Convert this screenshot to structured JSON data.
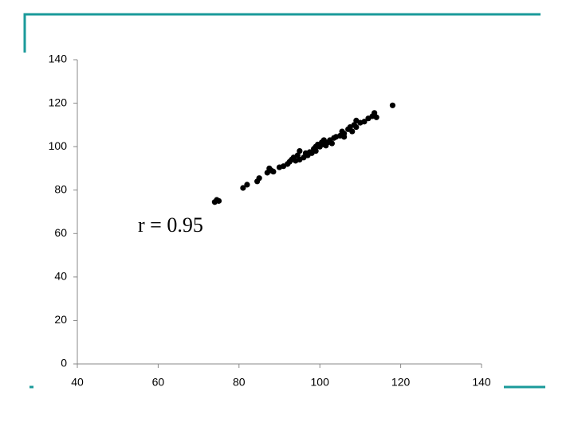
{
  "chart_data": {
    "type": "scatter",
    "annotation": "r = 0.95",
    "color": "#000000",
    "x": [
      74,
      75,
      74.5,
      81,
      82,
      84.5,
      85,
      87,
      87.5,
      88,
      88.5,
      90,
      91,
      92,
      92.5,
      93,
      93.5,
      94,
      94.5,
      95,
      95,
      96,
      96.5,
      97,
      97.5,
      98,
      98.5,
      99,
      99,
      99.5,
      100,
      100.5,
      101,
      101,
      101.5,
      102,
      102.5,
      103,
      103.5,
      104,
      105,
      105.5,
      106,
      106,
      107,
      107.5,
      108,
      108.5,
      109,
      109,
      110,
      111,
      112,
      113,
      113.5,
      114,
      118
    ],
    "values": [
      74.5,
      75,
      75.5,
      81,
      82.5,
      84,
      85.5,
      88,
      90,
      89,
      88.5,
      90.5,
      91,
      92,
      93,
      94,
      95,
      93.5,
      96,
      98,
      94,
      95,
      97,
      96,
      97.5,
      97,
      99,
      100,
      98,
      101,
      100,
      102,
      101,
      103,
      100.5,
      102,
      103,
      101.5,
      104,
      104.5,
      105,
      107,
      106,
      104.5,
      108,
      109,
      107,
      110,
      109,
      112,
      111,
      111.5,
      113,
      114,
      115.5,
      113.5,
      119
    ],
    "xlim": [
      40,
      140
    ],
    "xticks": [
      40,
      60,
      80,
      100,
      120,
      140
    ],
    "ylim": [
      0,
      140
    ],
    "yticks": [
      0,
      20,
      40,
      60,
      80,
      100,
      120,
      140
    ]
  }
}
